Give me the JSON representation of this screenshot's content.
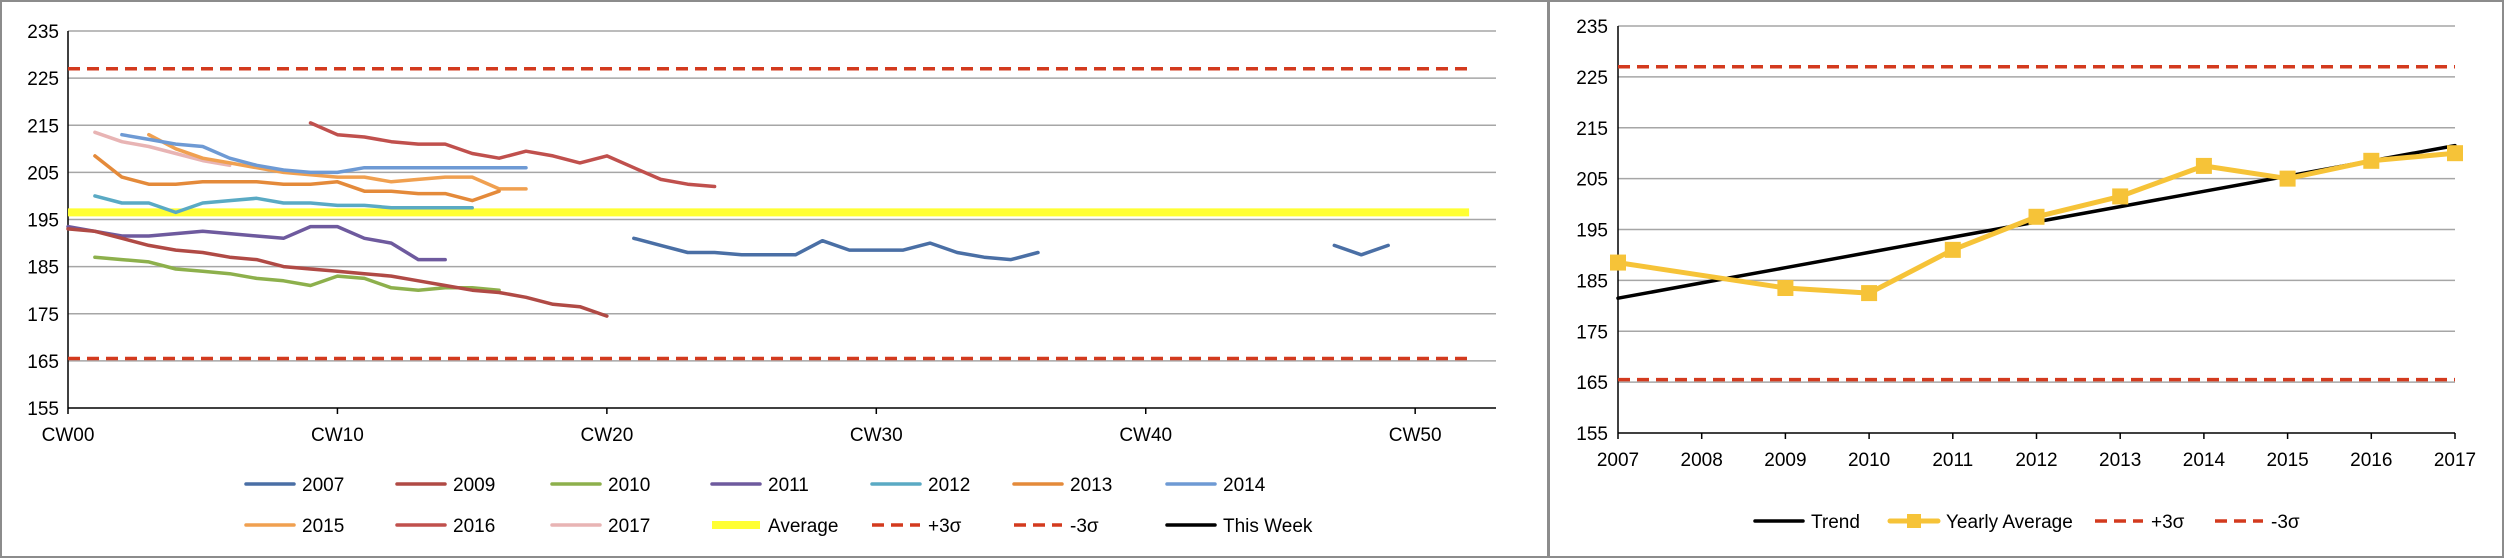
{
  "chart_data": [
    {
      "type": "line",
      "title": "",
      "xlabel": "",
      "ylabel": "",
      "ylim": [
        155,
        235
      ],
      "yticks": [
        155,
        165,
        175,
        185,
        195,
        205,
        215,
        225,
        235
      ],
      "xlim": [
        0,
        53
      ],
      "xticks": [
        {
          "x": 0,
          "label": "CW00"
        },
        {
          "x": 10,
          "label": "CW10"
        },
        {
          "x": 20,
          "label": "CW20"
        },
        {
          "x": 30,
          "label": "CW30"
        },
        {
          "x": 40,
          "label": "CW40"
        },
        {
          "x": 50,
          "label": "CW50"
        }
      ],
      "grid": "horizontal",
      "legend_position": "bottom",
      "series": [
        {
          "name": "2007",
          "color": "#4a6fa5",
          "style": "solid",
          "points": [
            [
              21,
              191
            ],
            [
              22,
              189.5
            ],
            [
              23,
              188
            ],
            [
              24,
              188
            ],
            [
              25,
              187.5
            ],
            [
              26,
              187.5
            ],
            [
              27,
              187.5
            ],
            [
              28,
              190.5
            ],
            [
              29,
              188.5
            ],
            [
              30,
              188.5
            ],
            [
              31,
              188.5
            ],
            [
              32,
              190
            ],
            [
              33,
              188
            ],
            [
              34,
              187
            ],
            [
              35,
              186.5
            ],
            [
              36,
              188
            ],
            null,
            [
              47,
              189.5
            ],
            [
              48,
              187.5
            ],
            [
              49,
              189.5
            ]
          ]
        },
        {
          "name": "2009",
          "color": "#b04a45",
          "style": "solid",
          "points": [
            [
              0,
              193
            ],
            [
              1,
              192.5
            ],
            [
              2,
              191
            ],
            [
              3,
              189.5
            ],
            [
              4,
              188.5
            ],
            [
              5,
              188
            ],
            [
              6,
              187
            ],
            [
              7,
              186.5
            ],
            [
              8,
              185
            ],
            [
              9,
              184.5
            ],
            [
              10,
              184
            ],
            [
              11,
              183.5
            ],
            [
              12,
              183
            ],
            [
              13,
              182
            ],
            [
              14,
              181
            ],
            [
              15,
              180
            ],
            [
              16,
              179.5
            ],
            [
              17,
              178.5
            ],
            [
              18,
              177
            ],
            [
              19,
              176.5
            ],
            [
              20,
              174.5
            ]
          ]
        },
        {
          "name": "2010",
          "color": "#8db04c",
          "style": "solid",
          "points": [
            [
              1,
              187
            ],
            [
              2,
              186.5
            ],
            [
              3,
              186
            ],
            [
              4,
              184.5
            ],
            [
              5,
              184
            ],
            [
              6,
              183.5
            ],
            [
              7,
              182.5
            ],
            [
              8,
              182
            ],
            [
              9,
              181
            ],
            [
              10,
              183
            ],
            [
              11,
              182.5
            ],
            [
              12,
              180.5
            ],
            [
              13,
              180
            ],
            [
              14,
              180.5
            ],
            [
              15,
              180.5
            ],
            [
              16,
              180
            ]
          ]
        },
        {
          "name": "2011",
          "color": "#6e5a9e",
          "style": "solid",
          "points": [
            [
              0,
              193.5
            ],
            [
              1,
              192.5
            ],
            [
              2,
              191.5
            ],
            [
              3,
              191.5
            ],
            [
              4,
              192
            ],
            [
              5,
              192.5
            ],
            [
              6,
              192
            ],
            [
              7,
              191.5
            ],
            [
              8,
              191
            ],
            [
              9,
              193.5
            ],
            [
              10,
              193.5
            ],
            [
              11,
              191
            ],
            [
              12,
              190
            ],
            [
              13,
              186.5
            ],
            [
              14,
              186.5
            ]
          ]
        },
        {
          "name": "2012",
          "color": "#5aaac4",
          "style": "solid",
          "points": [
            [
              1,
              200
            ],
            [
              2,
              198.5
            ],
            [
              3,
              198.5
            ],
            [
              4,
              196.5
            ],
            [
              5,
              198.5
            ],
            [
              6,
              199
            ],
            [
              7,
              199.5
            ],
            [
              8,
              198.5
            ],
            [
              9,
              198.5
            ],
            [
              10,
              198
            ],
            [
              11,
              198
            ],
            [
              12,
              197.5
            ],
            [
              13,
              197.5
            ],
            [
              14,
              197.5
            ],
            [
              15,
              197.5
            ]
          ]
        },
        {
          "name": "2013",
          "color": "#e48a3a",
          "style": "solid",
          "points": [
            [
              1,
              208.5
            ],
            [
              2,
              204
            ],
            [
              3,
              202.5
            ],
            [
              4,
              202.5
            ],
            [
              5,
              203
            ],
            [
              6,
              203
            ],
            [
              7,
              203
            ],
            [
              8,
              202.5
            ],
            [
              9,
              202.5
            ],
            [
              10,
              203
            ],
            [
              11,
              201
            ],
            [
              12,
              201
            ],
            [
              13,
              200.5
            ],
            [
              14,
              200.5
            ],
            [
              15,
              199
            ],
            [
              16,
              201
            ]
          ]
        },
        {
          "name": "2014",
          "color": "#6e9ad4",
          "style": "solid",
          "points": [
            [
              2,
              213
            ],
            [
              3,
              212
            ],
            [
              4,
              211
            ],
            [
              5,
              210.5
            ],
            [
              6,
              208
            ],
            [
              7,
              206.5
            ],
            [
              8,
              205.5
            ],
            [
              9,
              205
            ],
            [
              10,
              205
            ],
            [
              11,
              206
            ],
            [
              12,
              206
            ],
            [
              13,
              206
            ],
            [
              14,
              206
            ],
            [
              15,
              206
            ],
            [
              16,
              206
            ],
            [
              17,
              206
            ]
          ]
        },
        {
          "name": "2015",
          "color": "#f0a050",
          "style": "solid",
          "points": [
            [
              3,
              213
            ],
            [
              4,
              210
            ],
            [
              5,
              208
            ],
            [
              6,
              207
            ],
            [
              7,
              206
            ],
            [
              8,
              205
            ],
            [
              9,
              204.5
            ],
            [
              10,
              204
            ],
            [
              11,
              204
            ],
            [
              12,
              203
            ],
            [
              13,
              203.5
            ],
            [
              14,
              204
            ],
            [
              15,
              204
            ],
            [
              16,
              201.5
            ],
            [
              17,
              201.5
            ]
          ]
        },
        {
          "name": "2016",
          "color": "#c0504d",
          "style": "solid",
          "points": [
            [
              9,
              215.5
            ],
            [
              10,
              213
            ],
            [
              11,
              212.5
            ],
            [
              12,
              211.5
            ],
            [
              13,
              211
            ],
            [
              14,
              211
            ],
            [
              15,
              209
            ],
            [
              16,
              208
            ],
            [
              17,
              209.5
            ],
            [
              18,
              208.5
            ],
            [
              19,
              207
            ],
            [
              20,
              208.5
            ],
            [
              21,
              206
            ],
            [
              22,
              203.5
            ],
            [
              23,
              202.5
            ],
            [
              24,
              202
            ]
          ]
        },
        {
          "name": "2017",
          "color": "#e8b4b4",
          "style": "solid",
          "points": [
            [
              1,
              213.5
            ],
            [
              2,
              211.5
            ],
            [
              3,
              210.5
            ],
            [
              4,
              209
            ],
            [
              5,
              207.5
            ],
            [
              6,
              206.5
            ]
          ]
        },
        {
          "name": "Average",
          "color": "#ffff33",
          "style": "thick",
          "points": [
            [
              0,
              196.5
            ],
            [
              52,
              196.5
            ]
          ]
        },
        {
          "name": "+3σ",
          "color": "#d33a1e",
          "style": "dashed",
          "points": [
            [
              0,
              227
            ],
            [
              52,
              227
            ]
          ]
        },
        {
          "name": "-3σ",
          "color": "#d33a1e",
          "style": "dashed",
          "points": [
            [
              0,
              165.5
            ],
            [
              52,
              165.5
            ]
          ]
        },
        {
          "name": "This Week",
          "color": "#000000",
          "style": "solid",
          "points": []
        }
      ]
    },
    {
      "type": "line",
      "title": "",
      "xlabel": "",
      "ylabel": "",
      "ylim": [
        155,
        235
      ],
      "yticks": [
        155,
        165,
        175,
        185,
        195,
        205,
        215,
        225,
        235
      ],
      "categories": [
        "2007",
        "2008",
        "2009",
        "2010",
        "2011",
        "2012",
        "2013",
        "2014",
        "2015",
        "2016",
        "2017"
      ],
      "grid": "horizontal",
      "legend_position": "bottom",
      "series": [
        {
          "name": "Trend",
          "color": "#000000",
          "style": "solid",
          "values": [
            181.5,
            184.5,
            187.5,
            190.5,
            193.5,
            196.5,
            199.5,
            202.5,
            205.5,
            208.5,
            211.5
          ]
        },
        {
          "name": "Yearly Average",
          "color": "#f6c338",
          "style": "marker",
          "values": [
            188.5,
            null,
            183.5,
            182.5,
            191,
            197.5,
            201.5,
            207.5,
            205,
            208.5,
            210
          ]
        },
        {
          "name": "+3σ",
          "color": "#d33a1e",
          "style": "dashed",
          "values": [
            227,
            227,
            227,
            227,
            227,
            227,
            227,
            227,
            227,
            227,
            227
          ]
        },
        {
          "name": "-3σ",
          "color": "#d33a1e",
          "style": "dashed",
          "values": [
            165.5,
            165.5,
            165.5,
            165.5,
            165.5,
            165.5,
            165.5,
            165.5,
            165.5,
            165.5,
            165.5
          ]
        }
      ]
    }
  ]
}
